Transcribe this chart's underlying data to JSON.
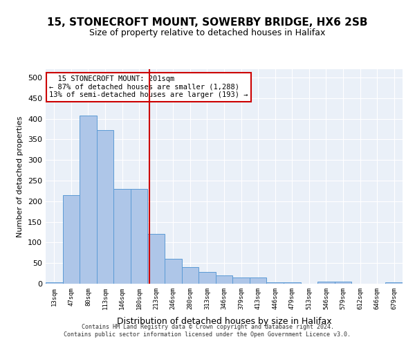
{
  "title": "15, STONECROFT MOUNT, SOWERBY BRIDGE, HX6 2SB",
  "subtitle": "Size of property relative to detached houses in Halifax",
  "xlabel": "Distribution of detached houses by size in Halifax",
  "ylabel": "Number of detached properties",
  "bar_labels": [
    "13sqm",
    "47sqm",
    "80sqm",
    "113sqm",
    "146sqm",
    "180sqm",
    "213sqm",
    "246sqm",
    "280sqm",
    "313sqm",
    "346sqm",
    "379sqm",
    "413sqm",
    "446sqm",
    "479sqm",
    "513sqm",
    "546sqm",
    "579sqm",
    "612sqm",
    "646sqm",
    "679sqm"
  ],
  "bar_values": [
    3,
    215,
    408,
    372,
    230,
    230,
    120,
    60,
    40,
    28,
    20,
    15,
    15,
    3,
    3,
    0,
    5,
    5,
    0,
    0,
    3
  ],
  "bar_color": "#aec6e8",
  "bar_edgecolor": "#5b9bd5",
  "property_line_x": 5.6,
  "property_sqm": 201,
  "property_label": "15 STONECROFT MOUNT: 201sqm",
  "pct_smaller": 87,
  "n_smaller": 1288,
  "pct_larger_semi": 13,
  "n_larger_semi": 193,
  "line_color": "#cc0000",
  "box_edgecolor": "#cc0000",
  "ylim": [
    0,
    520
  ],
  "yticks": [
    0,
    50,
    100,
    150,
    200,
    250,
    300,
    350,
    400,
    450,
    500
  ],
  "background_color": "#eaf0f8",
  "footer_line1": "Contains HM Land Registry data © Crown copyright and database right 2024.",
  "footer_line2": "Contains public sector information licensed under the Open Government Licence v3.0."
}
